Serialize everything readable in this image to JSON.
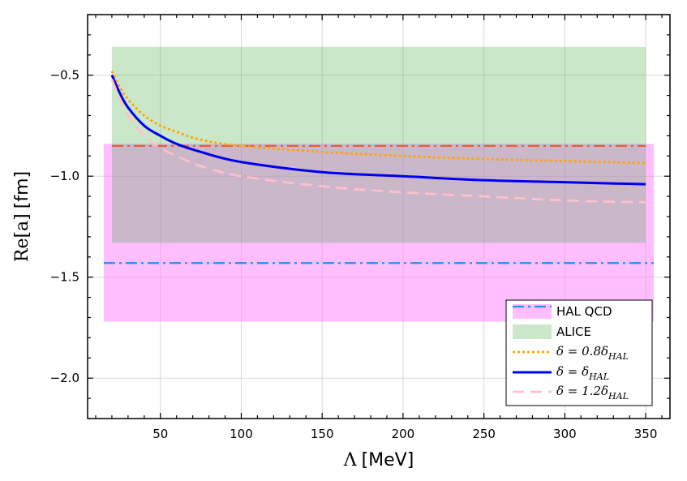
{
  "chart_data": {
    "type": "line",
    "xlabel": {
      "symbol": "Λ",
      "unit": "[MeV]"
    },
    "ylabel": {
      "symbol": "Re[a]",
      "unit": "[fm]"
    },
    "xlim": [
      5,
      365
    ],
    "ylim": [
      -2.2,
      -0.2
    ],
    "xticks": [
      50,
      100,
      150,
      200,
      250,
      300,
      350
    ],
    "xtick_labels": [
      "50",
      "100",
      "150",
      "200",
      "250",
      "300",
      "350"
    ],
    "yticks": [
      -0.5,
      -1.0,
      -1.5,
      -2.0
    ],
    "ytick_labels": [
      "−0.5",
      "−1.0",
      "−1.5",
      "−2.0"
    ],
    "grid": true,
    "legend_position": "bottom-right",
    "bands": [
      {
        "name": "HAL QCD",
        "color": "#ff80ff",
        "opacity": 0.5,
        "x": [
          15,
          355
        ],
        "y_low": -1.72,
        "y_high": -0.84,
        "center": -1.43,
        "center_color": "#1f8fff"
      },
      {
        "name": "ALICE",
        "color": "#2ca02c",
        "opacity": 0.25,
        "x": [
          20,
          350
        ],
        "y_low": -1.33,
        "y_high": -0.36,
        "center": -0.85,
        "center_color": "#e0603a"
      }
    ],
    "series": [
      {
        "name": "δ = 0.8δ_HAL",
        "legend_math": {
          "main": "δ = 0.8δ",
          "sub": "HAL"
        },
        "color": "#ffa500",
        "dash": "dotted",
        "x": [
          20,
          25,
          30,
          40,
          50,
          60,
          75,
          100,
          150,
          200,
          250,
          300,
          350
        ],
        "y": [
          -0.48,
          -0.56,
          -0.62,
          -0.7,
          -0.75,
          -0.78,
          -0.82,
          -0.85,
          -0.88,
          -0.9,
          -0.915,
          -0.925,
          -0.935
        ]
      },
      {
        "name": "δ = δ_HAL",
        "legend_math": {
          "main": "δ = δ",
          "sub": "HAL"
        },
        "color": "#0000ee",
        "dash": "solid",
        "x": [
          20,
          25,
          30,
          40,
          50,
          60,
          75,
          100,
          150,
          200,
          250,
          300,
          350
        ],
        "y": [
          -0.5,
          -0.59,
          -0.66,
          -0.75,
          -0.8,
          -0.84,
          -0.88,
          -0.93,
          -0.98,
          -1.0,
          -1.02,
          -1.03,
          -1.04
        ]
      },
      {
        "name": "δ = 1.2δ_HAL",
        "legend_math": {
          "main": "δ = 1.2δ",
          "sub": "HAL"
        },
        "color": "#ffc0cb",
        "dash": "dashed",
        "x": [
          20,
          25,
          30,
          40,
          50,
          60,
          75,
          100,
          150,
          200,
          250,
          300,
          350
        ],
        "y": [
          -0.52,
          -0.62,
          -0.7,
          -0.8,
          -0.86,
          -0.9,
          -0.95,
          -1.0,
          -1.05,
          -1.08,
          -1.1,
          -1.12,
          -1.13
        ]
      }
    ]
  }
}
